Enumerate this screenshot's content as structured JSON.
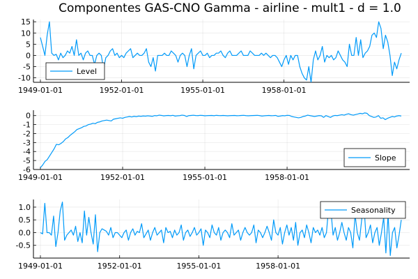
{
  "title": "Componentes GAS-CNO Gamma - airline - mult1 - d = 1.0",
  "colors": {
    "series": "#009AF9"
  },
  "chart_data": [
    {
      "type": "line",
      "name": "Level",
      "legend": "Level",
      "legend_position": "bottom-left",
      "grid": true,
      "x_start": "1949-01-01",
      "x_freq": "monthly",
      "x_ticks": [
        "1949-01-01",
        "1952-01-01",
        "1955-01-01",
        "1958-01-01"
      ],
      "ylim": [
        -12,
        16
      ],
      "yticks": [
        -10,
        -5,
        0,
        5,
        10,
        15
      ],
      "y_tick_labels": [
        "-10",
        "-5",
        "0",
        "5",
        "10",
        "15"
      ],
      "values": [
        8,
        4,
        0,
        9,
        15,
        1,
        0,
        0.5,
        -2,
        1,
        -1,
        0,
        2,
        1,
        4,
        0,
        7,
        0,
        1,
        -2,
        1,
        2,
        0,
        0,
        -4,
        0,
        1,
        0,
        -6,
        -1,
        0,
        2,
        3,
        0,
        1,
        -1,
        0,
        -1,
        1,
        2,
        3,
        -1,
        0,
        1,
        0,
        0,
        1,
        3,
        -3,
        -5,
        -1,
        -7,
        0,
        0,
        0,
        1,
        0,
        0,
        2,
        1,
        0,
        -3,
        0,
        1,
        0,
        -5,
        0,
        3,
        -6,
        0,
        1,
        2,
        0,
        0,
        1,
        -1,
        0,
        0,
        1,
        1,
        2,
        0,
        -1,
        1,
        2,
        0,
        0,
        0,
        1,
        2,
        0,
        0,
        0,
        2,
        1,
        0,
        0,
        0,
        1,
        0,
        1,
        0,
        -1,
        0,
        0,
        -1,
        -3,
        -5,
        -2,
        0,
        -4,
        0,
        -2,
        0,
        0,
        -5,
        -8,
        -10,
        -11,
        -5,
        -12,
        -2,
        2,
        -2,
        0,
        4,
        -3,
        0,
        -1,
        0,
        -2,
        -1,
        2,
        0,
        -2,
        -3,
        -5,
        5,
        0,
        0,
        8,
        0,
        7,
        -1,
        1,
        2,
        4,
        9,
        10,
        8,
        15,
        12,
        3,
        9,
        6,
        0,
        -9,
        -3,
        -6,
        -2,
        1
      ]
    },
    {
      "type": "line",
      "name": "Slope",
      "legend": "Slope",
      "legend_position": "bottom-right",
      "grid": true,
      "x_start": "1949-01-01",
      "x_freq": "monthly",
      "x_ticks": [
        "1949-01-01",
        "1952-01-01",
        "1955-01-01",
        "1958-01-01"
      ],
      "ylim": [
        -6,
        0.6
      ],
      "yticks": [
        -6,
        -5,
        -4,
        -3,
        -2,
        -1,
        0
      ],
      "y_tick_labels": [
        "-6",
        "-5",
        "-4",
        "-3",
        "-2",
        "-1",
        "0"
      ],
      "values": [
        -5.8,
        -5.5,
        -5.1,
        -4.9,
        -4.5,
        -4.1,
        -3.7,
        -3.2,
        -3.25,
        -3.1,
        -2.9,
        -2.6,
        -2.45,
        -2.2,
        -2.0,
        -1.8,
        -1.55,
        -1.45,
        -1.35,
        -1.2,
        -1.15,
        -1.0,
        -0.95,
        -0.85,
        -0.9,
        -0.75,
        -0.7,
        -0.6,
        -0.55,
        -0.5,
        -0.55,
        -0.6,
        -0.4,
        -0.35,
        -0.3,
        -0.25,
        -0.3,
        -0.2,
        -0.15,
        -0.1,
        -0.15,
        -0.08,
        -0.12,
        -0.05,
        -0.08,
        -0.04,
        -0.06,
        -0.02,
        -0.05,
        -0.08,
        0.0,
        -0.02,
        0.05,
        0.02,
        -0.03,
        0.0,
        0.02,
        -0.01,
        0.03,
        -0.05,
        -0.02,
        0.0,
        0.05,
        0.02,
        -0.1,
        0.0,
        0.02,
        0.04,
        0.01,
        0.0,
        0.03,
        0.02,
        -0.02,
        0.0,
        0.01,
        0.02,
        -0.01,
        0.03,
        0.01,
        0.0,
        0.02,
        0.0,
        -0.02,
        0.0,
        0.01,
        0.02,
        -0.01,
        0.0,
        0.02,
        0.03,
        0.0,
        -0.02,
        0.0,
        0.01,
        0.02,
        0.03,
        0.0,
        -0.05,
        -0.02,
        0.0,
        0.02,
        -0.01,
        0.0,
        0.02,
        -0.08,
        -0.05,
        0.0,
        -0.02,
        0.03,
        0.02,
        -0.1,
        -0.15,
        -0.2,
        -0.25,
        -0.2,
        -0.1,
        -0.05,
        0.05,
        0.0,
        -0.05,
        -0.1,
        -0.05,
        0.0,
        -0.02,
        -0.2,
        0.0,
        -0.1,
        -0.2,
        -0.05,
        0.02,
        0.0,
        0.05,
        0.1,
        0.05,
        0.15,
        0.2,
        0.1,
        0.05,
        0.12,
        0.18,
        0.25,
        0.2,
        0.3,
        0.25,
        0.0,
        -0.1,
        -0.2,
        -0.15,
        0.0,
        -0.3,
        -0.25,
        -0.45,
        -0.3,
        -0.2,
        -0.1,
        -0.15,
        -0.05,
        0.0,
        -0.05
      ]
    },
    {
      "type": "line",
      "name": "Seasonality",
      "legend": "Seasonality",
      "legend_position": "top-right",
      "grid": true,
      "x_start": "1949-01-01",
      "x_freq": "monthly",
      "x_ticks": [
        "1949-01-01",
        "1952-01-01",
        "1955-01-01",
        "1958-01-01"
      ],
      "ylim": [
        -1.0,
        1.3
      ],
      "yticks": [
        -0.5,
        0.0,
        0.5,
        1.0
      ],
      "y_tick_labels": [
        "-0.5",
        "0.0",
        "0.5",
        "1.0"
      ],
      "values": [
        0.0,
        -0.05,
        1.15,
        0.0,
        0.0,
        -0.1,
        0.65,
        -0.55,
        0.0,
        0.85,
        1.2,
        -0.3,
        -0.1,
        0.0,
        0.1,
        -0.1,
        0.25,
        -0.35,
        0.0,
        -0.4,
        0.85,
        -0.1,
        0.6,
        0.0,
        -0.45,
        0.7,
        -0.75,
        0.0,
        0.15,
        0.1,
        0.05,
        -0.1,
        0.2,
        -0.2,
        0.0,
        0.0,
        -0.1,
        -0.2,
        0.0,
        0.1,
        -0.3,
        0.0,
        0.15,
        -0.1,
        0.05,
        0.0,
        0.35,
        -0.2,
        -0.05,
        0.1,
        -0.3,
        0.0,
        0.2,
        -0.1,
        0.0,
        0.1,
        -0.4,
        0.2,
        0.0,
        0.05,
        -0.2,
        0.1,
        -0.1,
        0.0,
        0.3,
        -0.3,
        0.0,
        0.1,
        -0.15,
        0.0,
        0.2,
        -0.1,
        0.0,
        0.15,
        -0.5,
        0.1,
        0.0,
        -0.2,
        0.3,
        0.0,
        -0.1,
        0.2,
        -0.3,
        0.0,
        0.1,
        0.0,
        -0.2,
        0.35,
        -0.1,
        0.0,
        0.1,
        -0.3,
        0.0,
        0.2,
        0.0,
        -0.1,
        0.0,
        0.3,
        -0.4,
        0.1,
        0.0,
        -0.2,
        0.0,
        0.25,
        0.0,
        -0.3,
        0.5,
        0.0,
        -0.1,
        0.2,
        -0.45,
        0.0,
        0.3,
        -0.1,
        0.2,
        -0.3,
        0.4,
        -0.5,
        0.0,
        0.1,
        -0.2,
        0.3,
        0.0,
        -0.4,
        0.2,
        0.0,
        0.1,
        -0.1,
        0.2,
        -0.2,
        0.0,
        1.0,
        0.9,
        -0.1,
        0.2,
        -0.3,
        0.0,
        0.4,
        0.0,
        -0.3,
        0.2,
        0.0,
        -0.6,
        0.7,
        0.0,
        -0.3,
        0.5,
        1.1,
        -0.2,
        0.0,
        0.3,
        -0.4,
        0.0,
        0.2,
        -0.5,
        0.0,
        0.6,
        -0.8,
        0.7,
        -0.9,
        0.0,
        0.2,
        -0.6,
        -0.1,
        0.5
      ]
    }
  ]
}
